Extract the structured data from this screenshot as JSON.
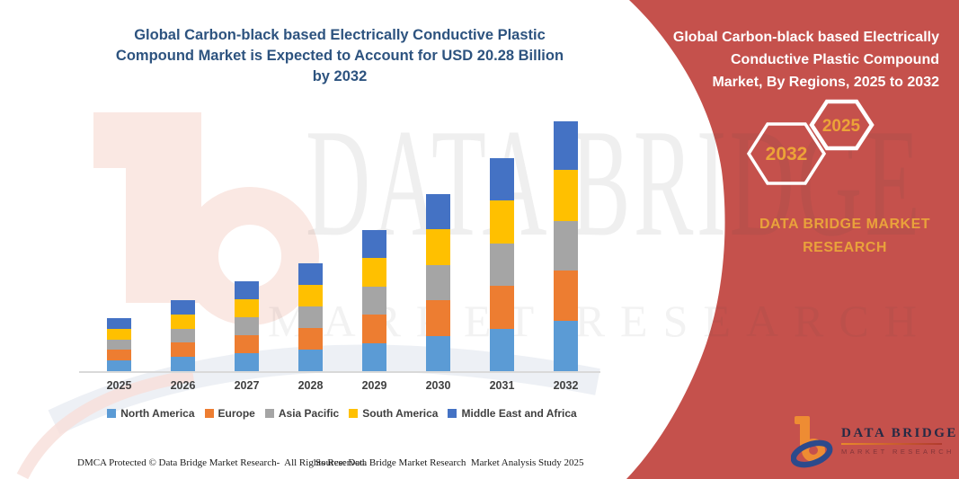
{
  "colors": {
    "panel_red": "#C5514C",
    "title_blue": "#2D537F",
    "gold": "#E9A23B",
    "axis_gray": "#D9D9D9",
    "label_gray": "#404040",
    "white": "#FFFFFF"
  },
  "chart": {
    "title_lines": [
      "Global Carbon-black based Electrically Conductive Plastic",
      "Compound Market is Expected to Account for USD 20.28 Billion",
      "by 2032"
    ]
  },
  "chart_data": {
    "type": "bar",
    "stacked": true,
    "title": "Global Carbon-black based Electrically Conductive Plastic Compound Market, By Regions, 2025 to 2032",
    "units": "USD Billion",
    "categories": [
      "2025",
      "2026",
      "2027",
      "2028",
      "2029",
      "2030",
      "2031",
      "2032"
    ],
    "series": [
      {
        "name": "North America",
        "color": "#5B9BD5",
        "values": [
          0.86,
          1.15,
          1.46,
          1.76,
          2.3,
          2.88,
          3.46,
          4.08
        ]
      },
      {
        "name": "Europe",
        "color": "#ED7D31",
        "values": [
          0.86,
          1.15,
          1.46,
          1.76,
          2.3,
          2.88,
          3.46,
          4.12
        ]
      },
      {
        "name": "Asia Pacific",
        "color": "#A5A5A5",
        "values": [
          0.86,
          1.15,
          1.46,
          1.76,
          2.3,
          2.88,
          3.46,
          4.0
        ]
      },
      {
        "name": "South America",
        "color": "#FFC000",
        "values": [
          0.86,
          1.15,
          1.46,
          1.76,
          2.3,
          2.88,
          3.46,
          4.12
        ]
      },
      {
        "name": "Middle East and Africa",
        "color": "#4472C4",
        "values": [
          0.86,
          1.15,
          1.46,
          1.76,
          2.3,
          2.88,
          3.46,
          3.96
        ]
      }
    ],
    "totals": [
      4.3,
      5.75,
      7.3,
      8.8,
      11.5,
      14.4,
      17.3,
      20.28
    ],
    "highlight_value": "USD 20.28 Billion by 2032",
    "xlabel": "",
    "ylabel": "",
    "ylim": [
      0,
      21
    ],
    "grid": false,
    "y_axis_shown": false,
    "legend_position": "bottom"
  },
  "side_panel": {
    "heading_lines": [
      "Global Carbon-black based Electrically",
      "Conductive Plastic Compound",
      "Market, By Regions, 2025 to 2032"
    ],
    "hexagon_back_label": "2032",
    "hexagon_front_label": "2025",
    "brand_line1": "DATA BRIDGE MARKET",
    "brand_line2": "RESEARCH"
  },
  "logo": {
    "title": "DATA BRIDGE",
    "subtitle": "MARKET RESEARCH"
  },
  "watermark": {
    "line1": "DATA BRIDGE",
    "line2": "MARKET RESEARCH"
  },
  "footer": {
    "left": "DMCA Protected © Data Bridge Market Research-  All Rights Reserved.",
    "right": "Source: Data Bridge Market Research  Market Analysis Study 2025"
  }
}
